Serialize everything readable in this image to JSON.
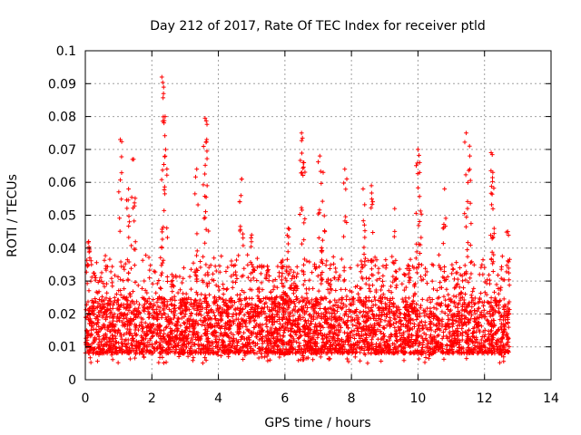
{
  "chart_data": {
    "type": "scatter",
    "title": "Day 212 of 2017, Rate Of TEC Index for receiver ptld",
    "xlabel": "GPS time / hours",
    "ylabel": "ROTI / TECUs",
    "xlim": [
      0,
      14
    ],
    "ylim": [
      0,
      0.1
    ],
    "x_ticks": [
      "0",
      "2",
      "4",
      "6",
      "8",
      "10",
      "12",
      "14"
    ],
    "y_ticks": [
      "0",
      "0.01",
      "0.02",
      "0.03",
      "0.04",
      "0.05",
      "0.06",
      "0.07",
      "0.08",
      "0.09",
      "0.1"
    ],
    "grid": true,
    "marker": "+",
    "color": "#ff0000",
    "series": [
      {
        "name": "ROTI",
        "data_extent_hours": [
          0,
          12.75
        ],
        "baseline_band": [
          0.005,
          0.03
        ],
        "peaks": [
          {
            "x": 0.1,
            "y": 0.042
          },
          {
            "x": 1.05,
            "y": 0.073
          },
          {
            "x": 1.3,
            "y": 0.058
          },
          {
            "x": 1.45,
            "y": 0.067
          },
          {
            "x": 2.3,
            "y": 0.092
          },
          {
            "x": 2.35,
            "y": 0.087
          },
          {
            "x": 2.4,
            "y": 0.08
          },
          {
            "x": 3.35,
            "y": 0.064
          },
          {
            "x": 3.6,
            "y": 0.0795
          },
          {
            "x": 3.65,
            "y": 0.073
          },
          {
            "x": 4.7,
            "y": 0.061
          },
          {
            "x": 5.0,
            "y": 0.044
          },
          {
            "x": 6.1,
            "y": 0.046
          },
          {
            "x": 6.5,
            "y": 0.075
          },
          {
            "x": 6.55,
            "y": 0.066
          },
          {
            "x": 7.05,
            "y": 0.068
          },
          {
            "x": 7.15,
            "y": 0.063
          },
          {
            "x": 7.8,
            "y": 0.064
          },
          {
            "x": 8.35,
            "y": 0.058
          },
          {
            "x": 8.6,
            "y": 0.059
          },
          {
            "x": 9.3,
            "y": 0.052
          },
          {
            "x": 10.0,
            "y": 0.07
          },
          {
            "x": 10.05,
            "y": 0.066
          },
          {
            "x": 10.8,
            "y": 0.058
          },
          {
            "x": 11.45,
            "y": 0.075
          },
          {
            "x": 11.55,
            "y": 0.071
          },
          {
            "x": 12.2,
            "y": 0.069
          },
          {
            "x": 12.25,
            "y": 0.063
          },
          {
            "x": 12.7,
            "y": 0.045
          }
        ]
      }
    ]
  }
}
